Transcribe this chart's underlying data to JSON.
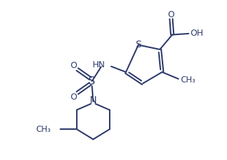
{
  "bg_color": "#ffffff",
  "line_color": "#2d3a6b",
  "text_color": "#2d3a6b",
  "line_width": 1.5,
  "font_size": 8.5,
  "figsize": [
    3.31,
    2.33
  ],
  "dpi": 100,
  "xlim": [
    0,
    10
  ],
  "ylim": [
    0,
    7
  ]
}
